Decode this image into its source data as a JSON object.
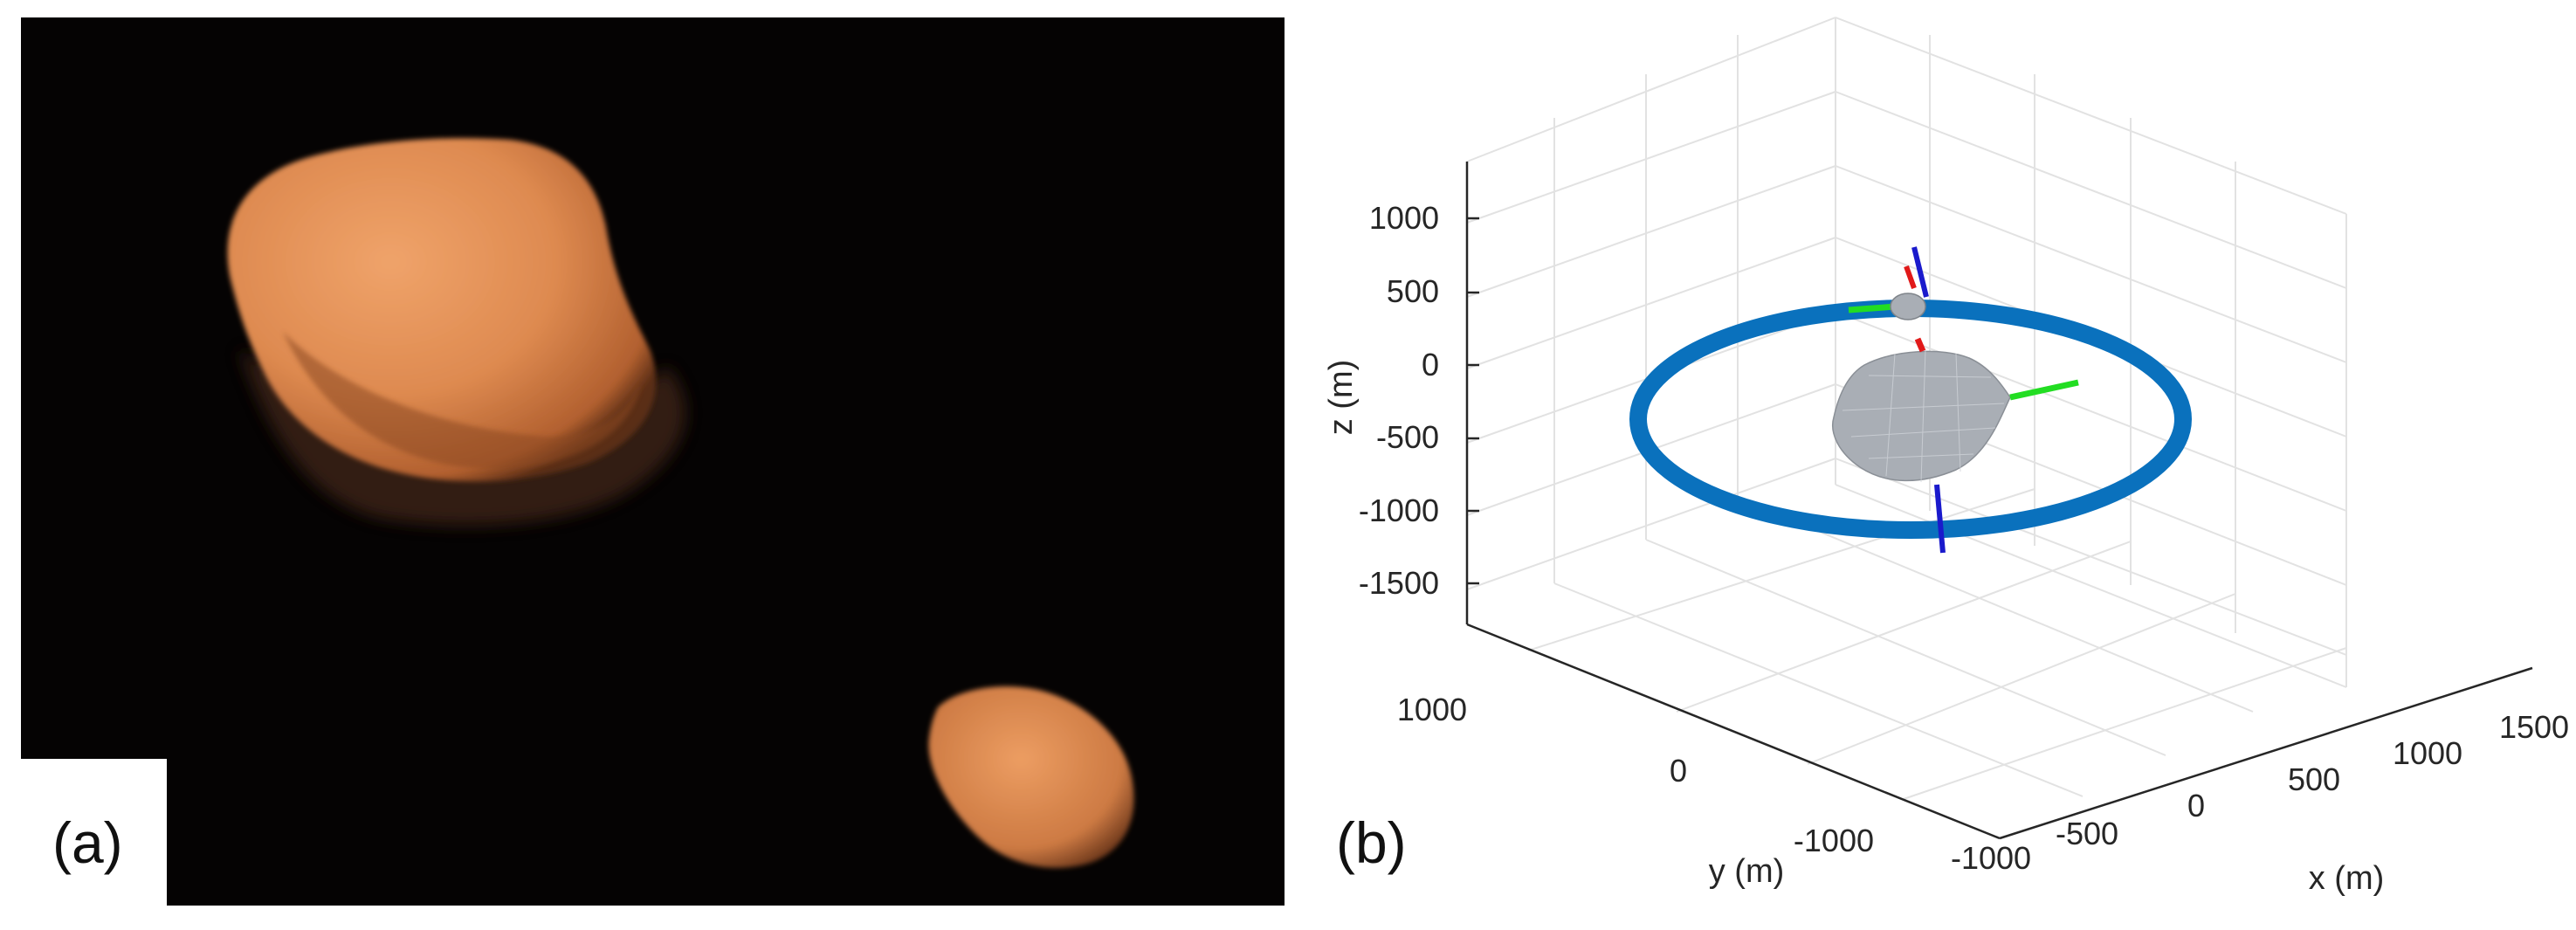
{
  "figure": {
    "panels": [
      {
        "id": "a",
        "label": "(a)",
        "content": "photo"
      },
      {
        "id": "b",
        "label": "(b)",
        "content": "3d-plot"
      }
    ]
  },
  "colors": {
    "background_photo": "#050303",
    "asteroid_orange": "#d9814a",
    "orbit_blue": "#0a71bd",
    "axis_red": "#e11919",
    "axis_green": "#22dd22",
    "axis_blue": "#1a1acc",
    "mesh_gray": "#a9aeb5",
    "grid_gray": "#e2e2e2"
  },
  "plot": {
    "z_axis": {
      "label": "z (m)",
      "ticks": [
        "1000",
        "500",
        "0",
        "-500",
        "-1000",
        "-1500"
      ]
    },
    "y_axis": {
      "label": "y (m)",
      "ticks": [
        "1000",
        "0",
        "-1000"
      ]
    },
    "x_axis": {
      "label": "x (m)",
      "ticks": [
        "-1000",
        "-500",
        "0",
        "500",
        "1000",
        "1500"
      ]
    }
  }
}
